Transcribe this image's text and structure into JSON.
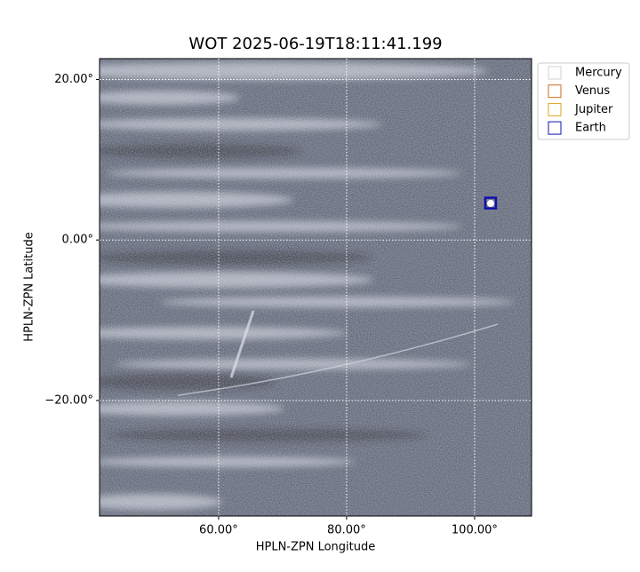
{
  "chart_data": {
    "type": "image",
    "title": "WOT 2025-06-19T18:11:41.199",
    "xlabel": "HPLN-ZPN Longitude",
    "ylabel": "HPLN-ZPN Latitude",
    "xlim": [
      41.4,
      108.9
    ],
    "ylim": [
      -34.4,
      22.6
    ],
    "xticks": [
      {
        "value": 60,
        "label": "60.00°"
      },
      {
        "value": 80,
        "label": "80.00°"
      },
      {
        "value": 100,
        "label": "100.00°"
      }
    ],
    "yticks": [
      {
        "value": 20,
        "label": "20.00°"
      },
      {
        "value": 0,
        "label": "0.00°"
      },
      {
        "value": -20,
        "label": "−20.00°"
      }
    ],
    "grid": true,
    "legend": "upper right",
    "series": [
      {
        "name": "Mercury",
        "color": "#d3d3d3",
        "x": [],
        "y": []
      },
      {
        "name": "Venus",
        "color": "#d2691e",
        "x": [],
        "y": []
      },
      {
        "name": "Jupiter",
        "color": "#daa520",
        "x": [],
        "y": []
      },
      {
        "name": "Earth",
        "color": "#1010b0",
        "x": [
          102.5
        ],
        "y": [
          4.6
        ]
      }
    ]
  }
}
